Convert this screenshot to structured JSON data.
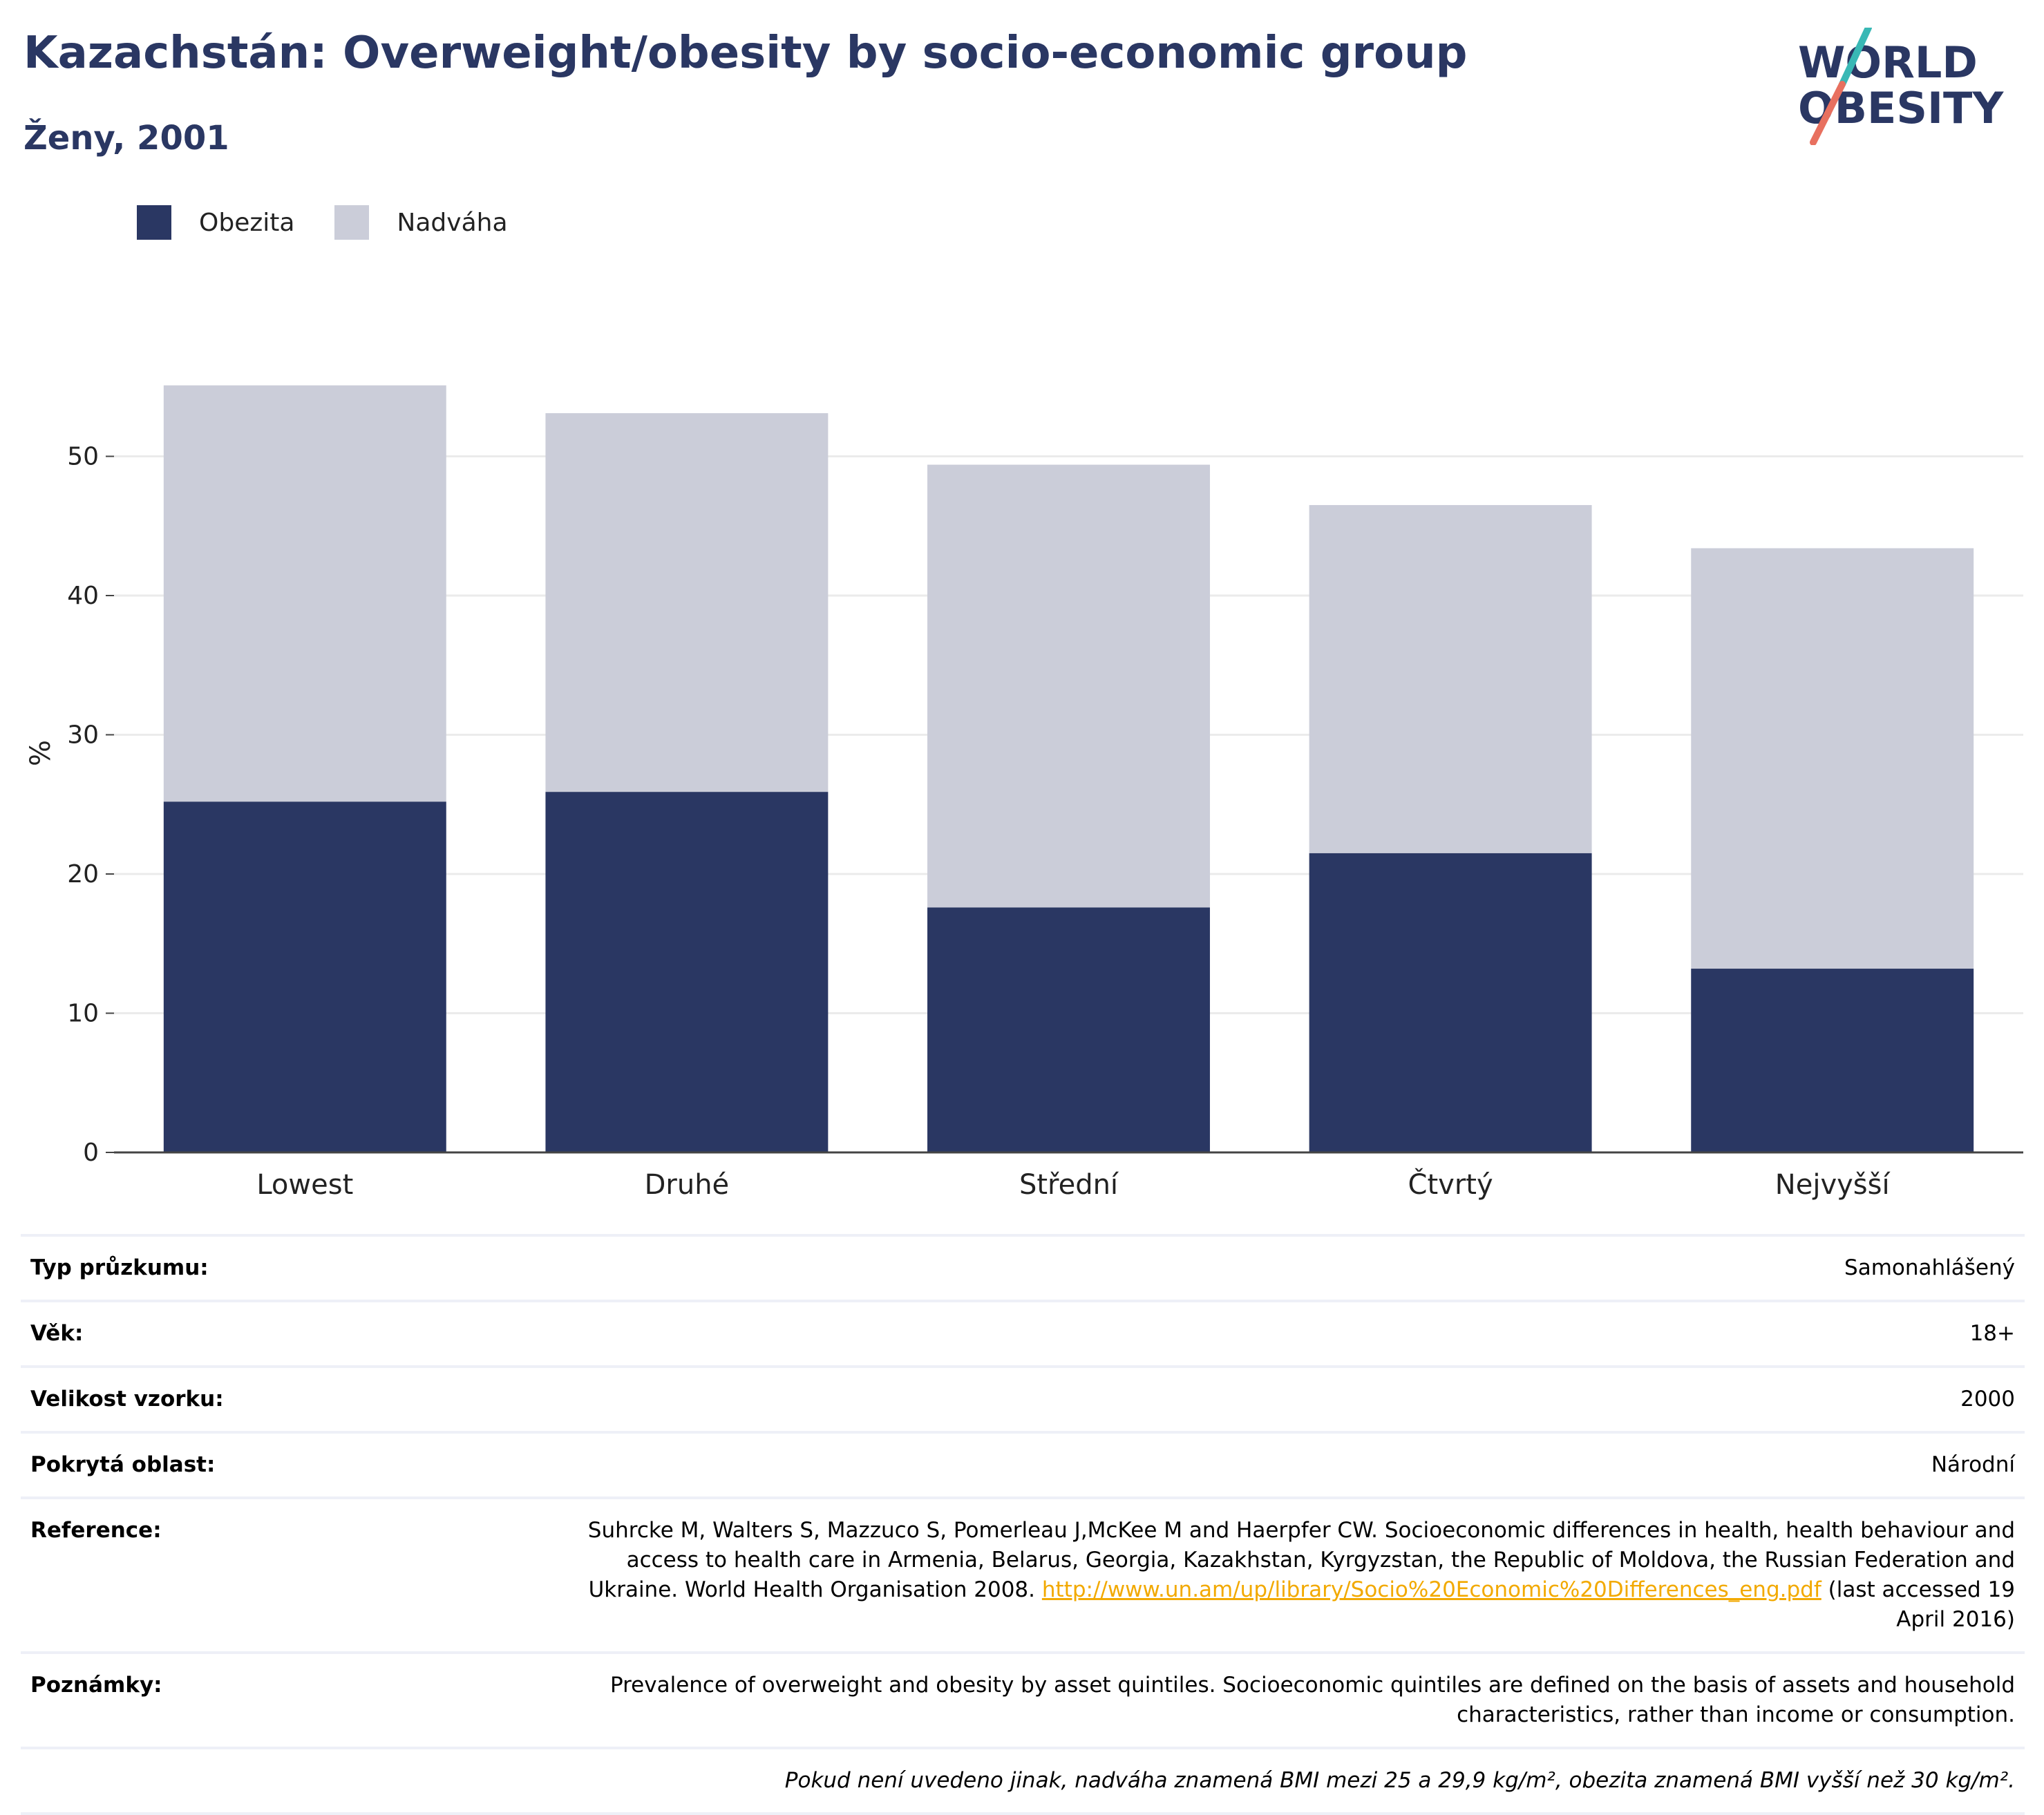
{
  "header": {
    "title": "Kazachstán: Overweight/obesity by socio-economic group",
    "subtitle": "Ženy, 2001"
  },
  "logo": {
    "line1": "WORLD",
    "line2": "OBESITY"
  },
  "colors": {
    "obesity": "#2a3763",
    "overweight": "#cbcdd9",
    "title": "#2a3763",
    "link": "#f2a900"
  },
  "legend": [
    {
      "label": "Obezita",
      "color": "#2a3763"
    },
    {
      "label": "Nadváha",
      "color": "#cbcdd9"
    }
  ],
  "chart_data": {
    "type": "bar",
    "stacked": true,
    "categories": [
      "Lowest",
      "Druhé",
      "Střední",
      "Čtvrtý",
      "Nejvyšší"
    ],
    "series": [
      {
        "name": "Obezita",
        "values": [
          25.2,
          25.9,
          17.6,
          21.5,
          13.2
        ]
      },
      {
        "name": "Nadváha",
        "values": [
          29.9,
          27.2,
          31.8,
          25.0,
          30.2
        ]
      }
    ],
    "ylabel": "%",
    "ylim": [
      0,
      60
    ],
    "yticks": [
      0,
      10,
      20,
      30,
      40,
      50
    ],
    "grid": true,
    "legend_position": "top-left"
  },
  "info": [
    {
      "label": "Typ průzkumu:",
      "value": "Samonahlášený"
    },
    {
      "label": "Věk:",
      "value": "18+"
    },
    {
      "label": "Velikost vzorku:",
      "value": "2000"
    },
    {
      "label": "Pokrytá oblast:",
      "value": "Národní"
    }
  ],
  "reference": {
    "label": "Reference:",
    "text_before": "Suhrcke M, Walters S, Mazzuco S, Pomerleau J,McKee M and Haerpfer CW. Socioeconomic differences in health, health behaviour and access to health care in Armenia, Belarus, Georgia, Kazakhstan, Kyrgyzstan, the Republic of Moldova, the Russian Federation and Ukraine. World Health Organisation 2008. ",
    "link": "http://www.un.am/up/library/Socio%20Economic%20Differences_eng.pdf",
    "text_after": " (last accessed 19 April 2016)"
  },
  "notes": {
    "label": "Poznámky:",
    "value": "Prevalence of overweight and obesity by asset quintiles. Socioeconomic quintiles are defined on the basis of assets and household characteristics, rather than income or consumption."
  },
  "footnote": "Pokud není uvedeno jinak, nadváha znamená BMI mezi 25 a 29,9 kg/m², obezita znamená BMI vyšší než 30 kg/m²."
}
